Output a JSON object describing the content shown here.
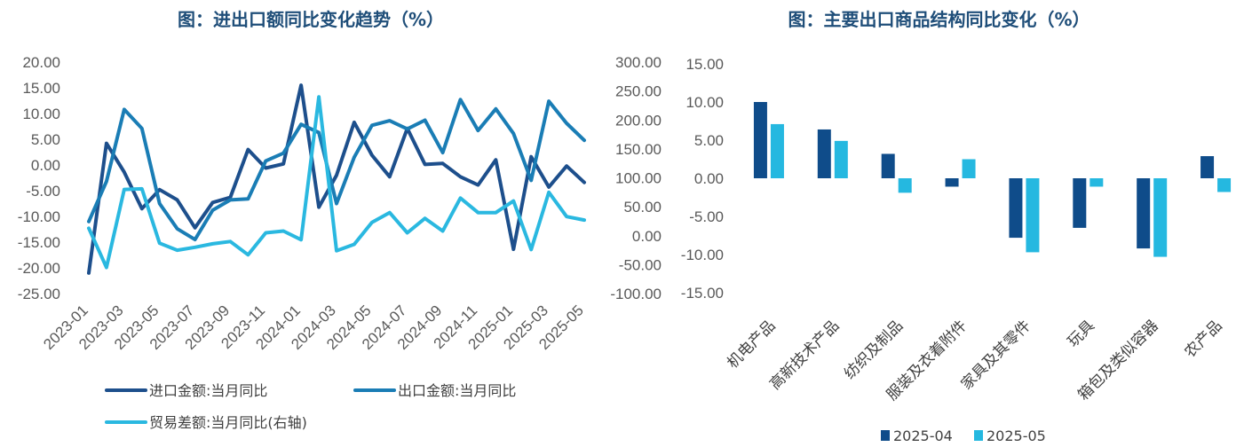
{
  "chart_data": [
    {
      "type": "line",
      "title": "图：进出口额同比变化趋势（%）",
      "colors": {
        "import": "#1d4f8c",
        "export": "#1a7db5",
        "balance": "#2ab8e0"
      },
      "x": [
        "2023-01",
        "2023-02",
        "2023-03",
        "2023-04",
        "2023-05",
        "2023-06",
        "2023-07",
        "2023-08",
        "2023-09",
        "2023-10",
        "2023-11",
        "2023-12",
        "2024-01",
        "2024-02",
        "2024-03",
        "2024-04",
        "2024-05",
        "2024-06",
        "2024-07",
        "2024-08",
        "2024-09",
        "2024-10",
        "2024-11",
        "2024-12",
        "2025-01",
        "2025-02",
        "2025-03",
        "2025-04",
        "2025-05"
      ],
      "xtick_labels": [
        "2023-01",
        "2023-03",
        "2023-05",
        "2023-07",
        "2023-09",
        "2023-11",
        "2024-01",
        "2024-03",
        "2024-05",
        "2024-07",
        "2024-09",
        "2024-11",
        "2025-01",
        "2025-03",
        "2025-05"
      ],
      "y_left_ticks": [
        "20.00",
        "15.00",
        "10.00",
        "5.00",
        "0.00",
        "-5.00",
        "-10.00",
        "-15.00",
        "-20.00",
        "-25.00"
      ],
      "y_right_ticks": [
        "300.00",
        "250.00",
        "200.00",
        "150.00",
        "100.00",
        "50.00",
        "0.00",
        "-50.00",
        "-100.00"
      ],
      "ylim_left": [
        -25,
        20
      ],
      "ylim_right": [
        -100,
        300
      ],
      "series": [
        {
          "name": "进口金额:当月同比",
          "axis": "left",
          "key": "import",
          "values": [
            -21.0,
            4.2,
            -1.4,
            -8.5,
            -4.8,
            -6.8,
            -12.2,
            -7.3,
            -6.3,
            3.0,
            -0.6,
            0.2,
            15.5,
            -8.2,
            -2.0,
            8.3,
            1.9,
            -2.3,
            7.1,
            0.1,
            0.3,
            -2.3,
            -3.9,
            1.0,
            -16.4,
            1.6,
            -4.3,
            -0.2,
            -3.4
          ]
        },
        {
          "name": "出口金额:当月同比",
          "axis": "left",
          "key": "export",
          "values": [
            -11.0,
            -3.2,
            10.8,
            7.1,
            -7.5,
            -12.4,
            -14.5,
            -8.8,
            -6.8,
            -6.6,
            0.8,
            2.3,
            7.9,
            6.3,
            -7.5,
            1.5,
            7.7,
            8.6,
            7.0,
            8.7,
            2.4,
            12.7,
            6.7,
            10.9,
            6.1,
            -3.0,
            12.4,
            8.1,
            4.8
          ]
        },
        {
          "name": "贸易差额:当月同比(右轴)",
          "axis": "right",
          "key": "balance",
          "values": [
            13,
            -55,
            80,
            81,
            -13,
            -25,
            -20,
            -14,
            -10,
            -33,
            5,
            8,
            -7,
            240,
            -26,
            -15,
            23,
            40,
            5,
            30,
            8,
            65,
            40,
            40,
            60,
            -24,
            75,
            33,
            27
          ]
        }
      ],
      "legend": [
        "进口金额:当月同比",
        "出口金额:当月同比",
        "贸易差额:当月同比(右轴)"
      ],
      "legend_position": "bottom"
    },
    {
      "type": "bar",
      "title": "图：主要出口商品结构同比变化（%）",
      "categories": [
        "机电产品",
        "高新技术产品",
        "纺织及制品",
        "服装及衣着附件",
        "家具及其零件",
        "玩具",
        "箱包及类似容器",
        "农产品"
      ],
      "y_ticks": [
        "15.00",
        "10.00",
        "5.00",
        "0.00",
        "-5.00",
        "-10.00",
        "-15.00"
      ],
      "ylim": [
        -15,
        15
      ],
      "series": [
        {
          "name": "2025-04",
          "color": "#0f4c8a",
          "values": [
            10.0,
            6.4,
            3.2,
            -1.1,
            -7.8,
            -6.5,
            -9.2,
            2.9
          ]
        },
        {
          "name": "2025-05",
          "color": "#25b8e0",
          "values": [
            7.1,
            4.9,
            -1.9,
            2.5,
            -9.7,
            -1.1,
            -10.3,
            -1.8
          ]
        }
      ],
      "legend_position": "bottom"
    }
  ]
}
